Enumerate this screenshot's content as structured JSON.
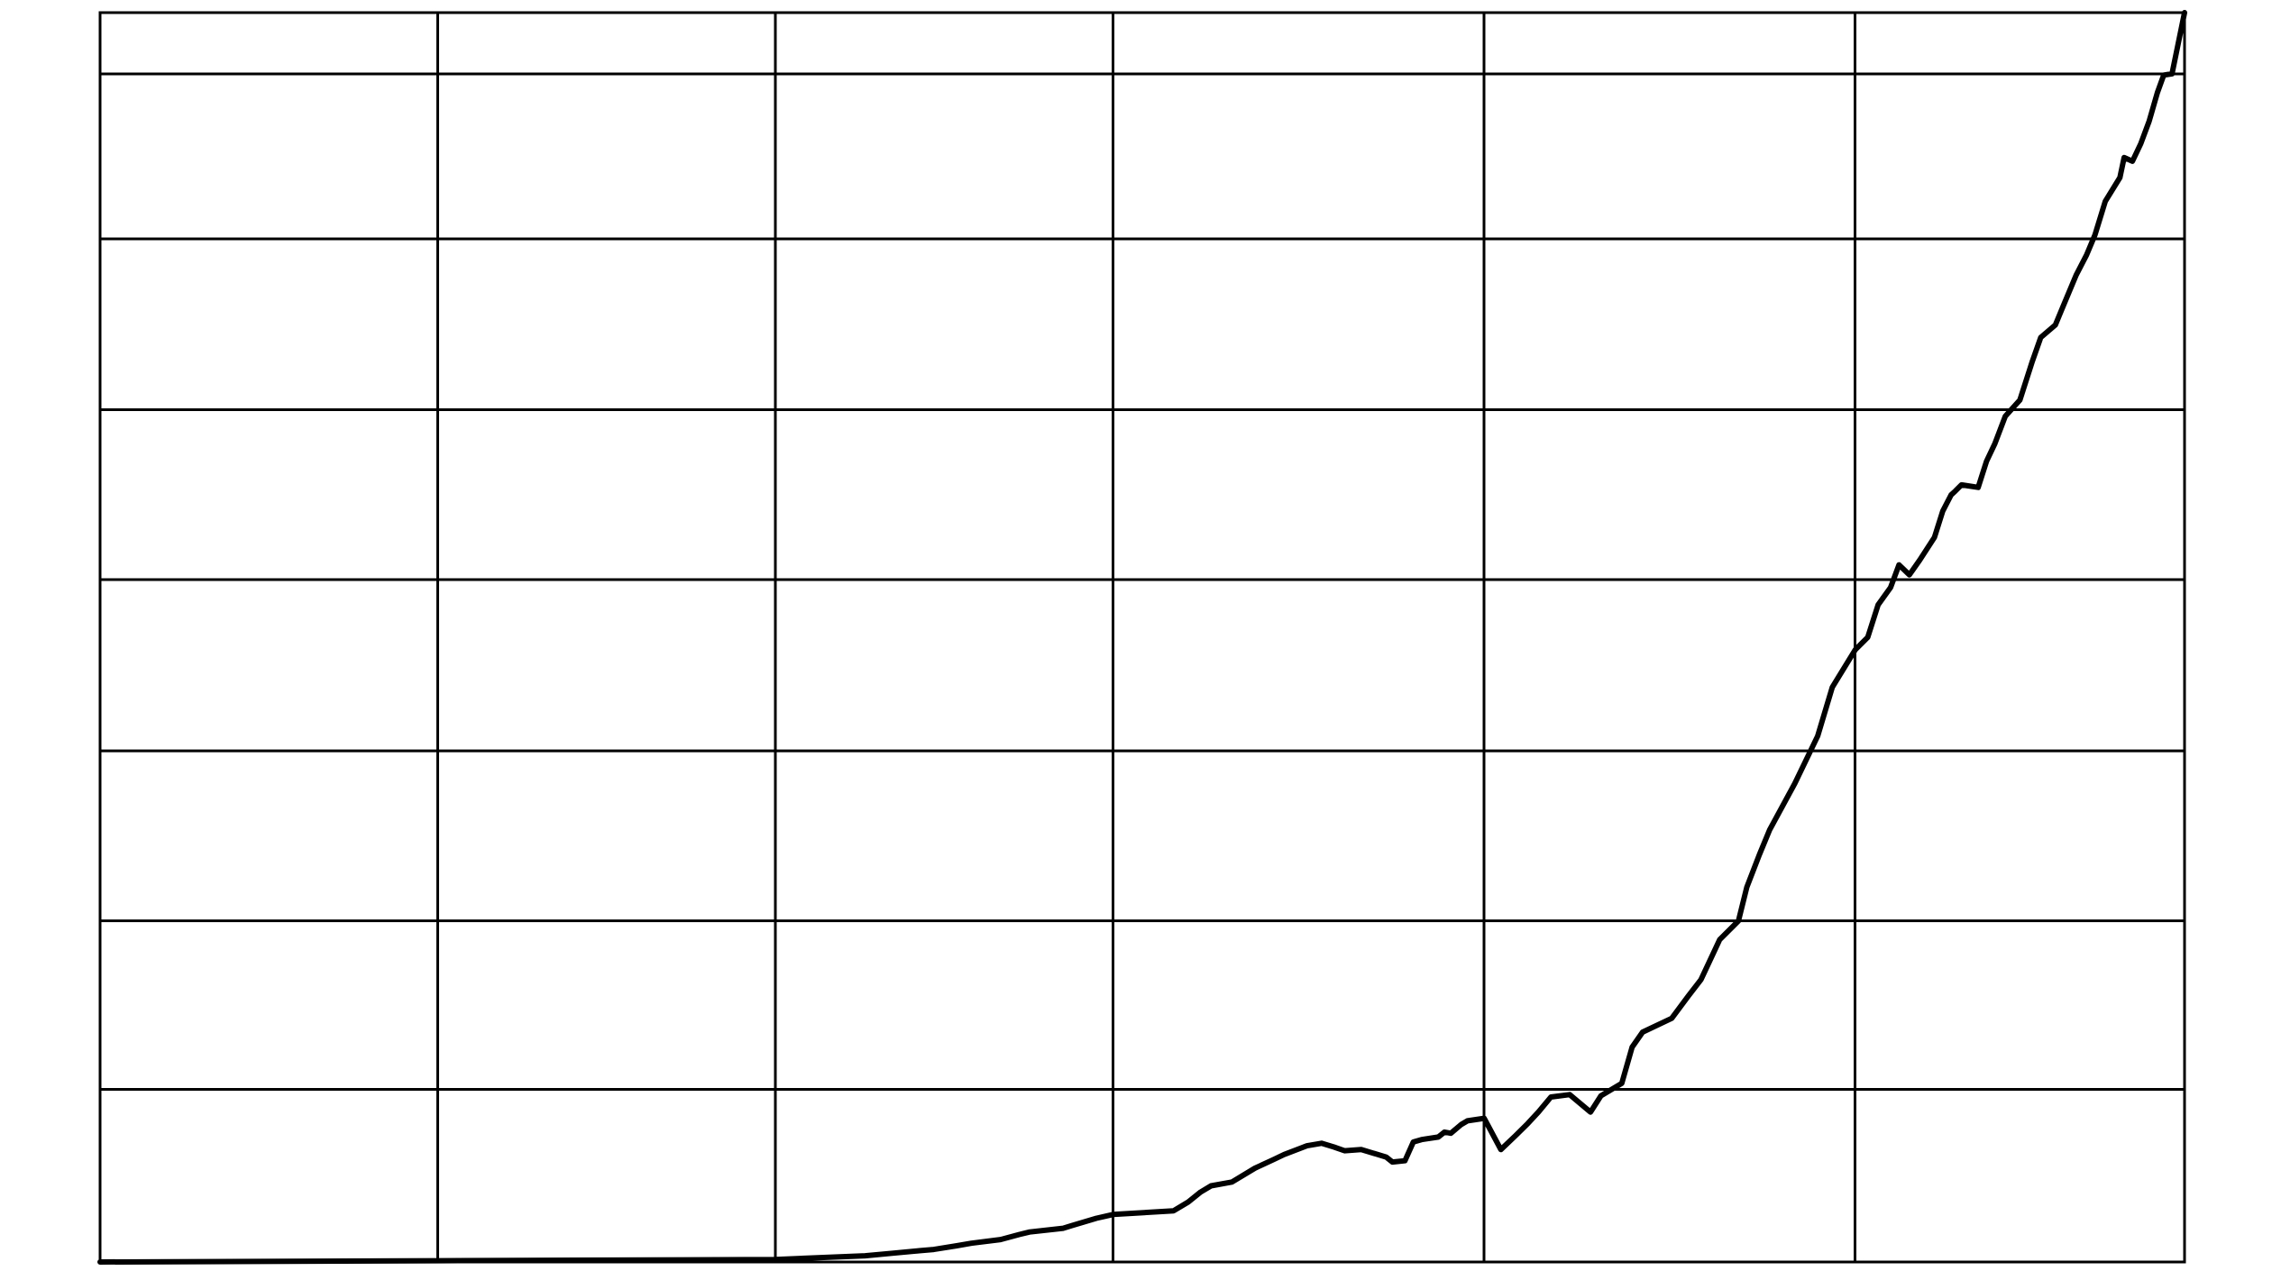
{
  "chart_data": {
    "type": "line",
    "title": "",
    "xlabel": "",
    "ylabel": "",
    "grid": true,
    "legend": "none",
    "xlim": [
      0,
      100
    ],
    "ylim": [
      0,
      100
    ],
    "x_gridlines": [
      16.2,
      32.4,
      48.6,
      66.4,
      84.2
    ],
    "y_gridlines": [
      13.8,
      27.3,
      40.9,
      54.6,
      68.2,
      81.9,
      95.1
    ],
    "series": [
      {
        "name": "",
        "color": "#000000",
        "x": [
          0,
          16.2,
          32.4,
          36.7,
          38.0,
          39.3,
          40.0,
          41.1,
          41.8,
          43.2,
          44.1,
          44.6,
          46.2,
          46.6,
          47.8,
          48.6,
          51.5,
          52.2,
          52.8,
          53.3,
          54.3,
          55.4,
          56.3,
          56.8,
          57.9,
          58.6,
          59.2,
          59.7,
          60.5,
          61.7,
          62.0,
          62.6,
          63.0,
          63.4,
          64.2,
          64.5,
          64.8,
          65.3,
          65.6,
          66.4,
          67.2,
          67.9,
          68.5,
          69.0,
          69.6,
          70.5,
          71.5,
          72.0,
          73.0,
          73.5,
          74.0,
          75.4,
          76.2,
          76.8,
          77.7,
          78.6,
          79.0,
          79.6,
          80.1,
          81.3,
          82.4,
          83.1,
          84.2,
          84.8,
          85.3,
          85.9,
          86.3,
          86.8,
          87.3,
          88.0,
          88.4,
          88.8,
          89.0,
          89.3,
          90.1,
          90.5,
          90.9,
          91.4,
          92.1,
          92.7,
          93.1,
          93.8,
          94.1,
          94.8,
          95.3,
          95.7,
          96.2,
          96.9,
          97.1,
          97.5,
          97.9,
          98.3,
          98.7,
          99.0,
          99.4,
          100
        ],
        "y": [
          0,
          0.1,
          0.2,
          0.5,
          0.7,
          0.9,
          1.0,
          1.3,
          1.5,
          1.8,
          2.2,
          2.4,
          2.7,
          2.9,
          3.5,
          3.8,
          4.1,
          4.8,
          5.6,
          6.1,
          6.4,
          7.5,
          8.2,
          8.6,
          9.3,
          9.5,
          9.2,
          8.9,
          9.0,
          8.4,
          8.0,
          8.1,
          9.6,
          9.8,
          10.0,
          10.4,
          10.3,
          11.0,
          11.3,
          11.5,
          9.0,
          10.1,
          11.1,
          12.0,
          13.2,
          13.4,
          12.0,
          13.3,
          14.3,
          17.2,
          18.4,
          19.5,
          21.3,
          22.6,
          25.8,
          27.3,
          30.0,
          32.6,
          34.6,
          38.3,
          42.1,
          46.0,
          49.0,
          50.0,
          52.6,
          54.0,
          55.8,
          55.0,
          56.2,
          58.0,
          60.1,
          61.4,
          61.7,
          62.2,
          62.0,
          64.1,
          65.5,
          67.7,
          69.0,
          72.1,
          74.0,
          75.0,
          76.2,
          79.0,
          80.6,
          82.2,
          84.9,
          86.8,
          88.4,
          88.1,
          89.5,
          91.3,
          93.6,
          95.0,
          95.1,
          100
        ]
      }
    ]
  }
}
